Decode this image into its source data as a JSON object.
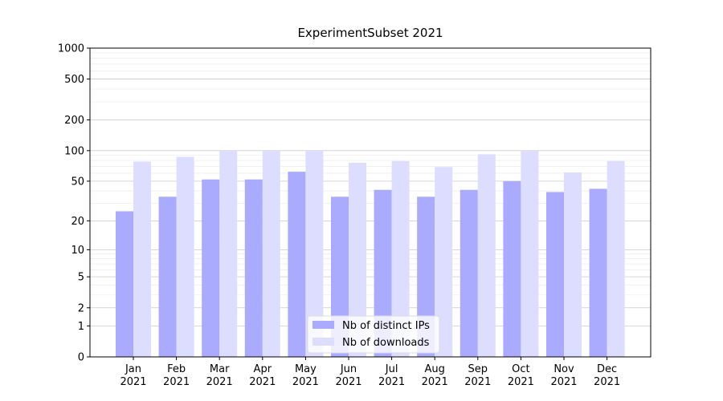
{
  "chart_data": {
    "type": "bar",
    "title": "ExperimentSubset 2021",
    "categories": [
      "Jan\n2021",
      "Feb\n2021",
      "Mar\n2021",
      "Apr\n2021",
      "May\n2021",
      "Jun\n2021",
      "Jul\n2021",
      "Aug\n2021",
      "Sep\n2021",
      "Oct\n2021",
      "Nov\n2021",
      "Dec\n2021"
    ],
    "series": [
      {
        "name": "Nb of distinct IPs",
        "color": "#aaaaff",
        "values": [
          25,
          35,
          52,
          52,
          62,
          35,
          41,
          35,
          41,
          50,
          39,
          42
        ]
      },
      {
        "name": "Nb of downloads",
        "color": "#ddddff",
        "values": [
          78,
          87,
          100,
          100,
          100,
          76,
          79,
          69,
          92,
          100,
          61,
          79
        ]
      }
    ],
    "yscale": "log1p",
    "ylim": [
      0,
      1000
    ],
    "yticks": [
      0,
      1,
      2,
      5,
      10,
      20,
      50,
      100,
      200,
      500,
      1000
    ],
    "grid": true,
    "legend": "lower center"
  }
}
